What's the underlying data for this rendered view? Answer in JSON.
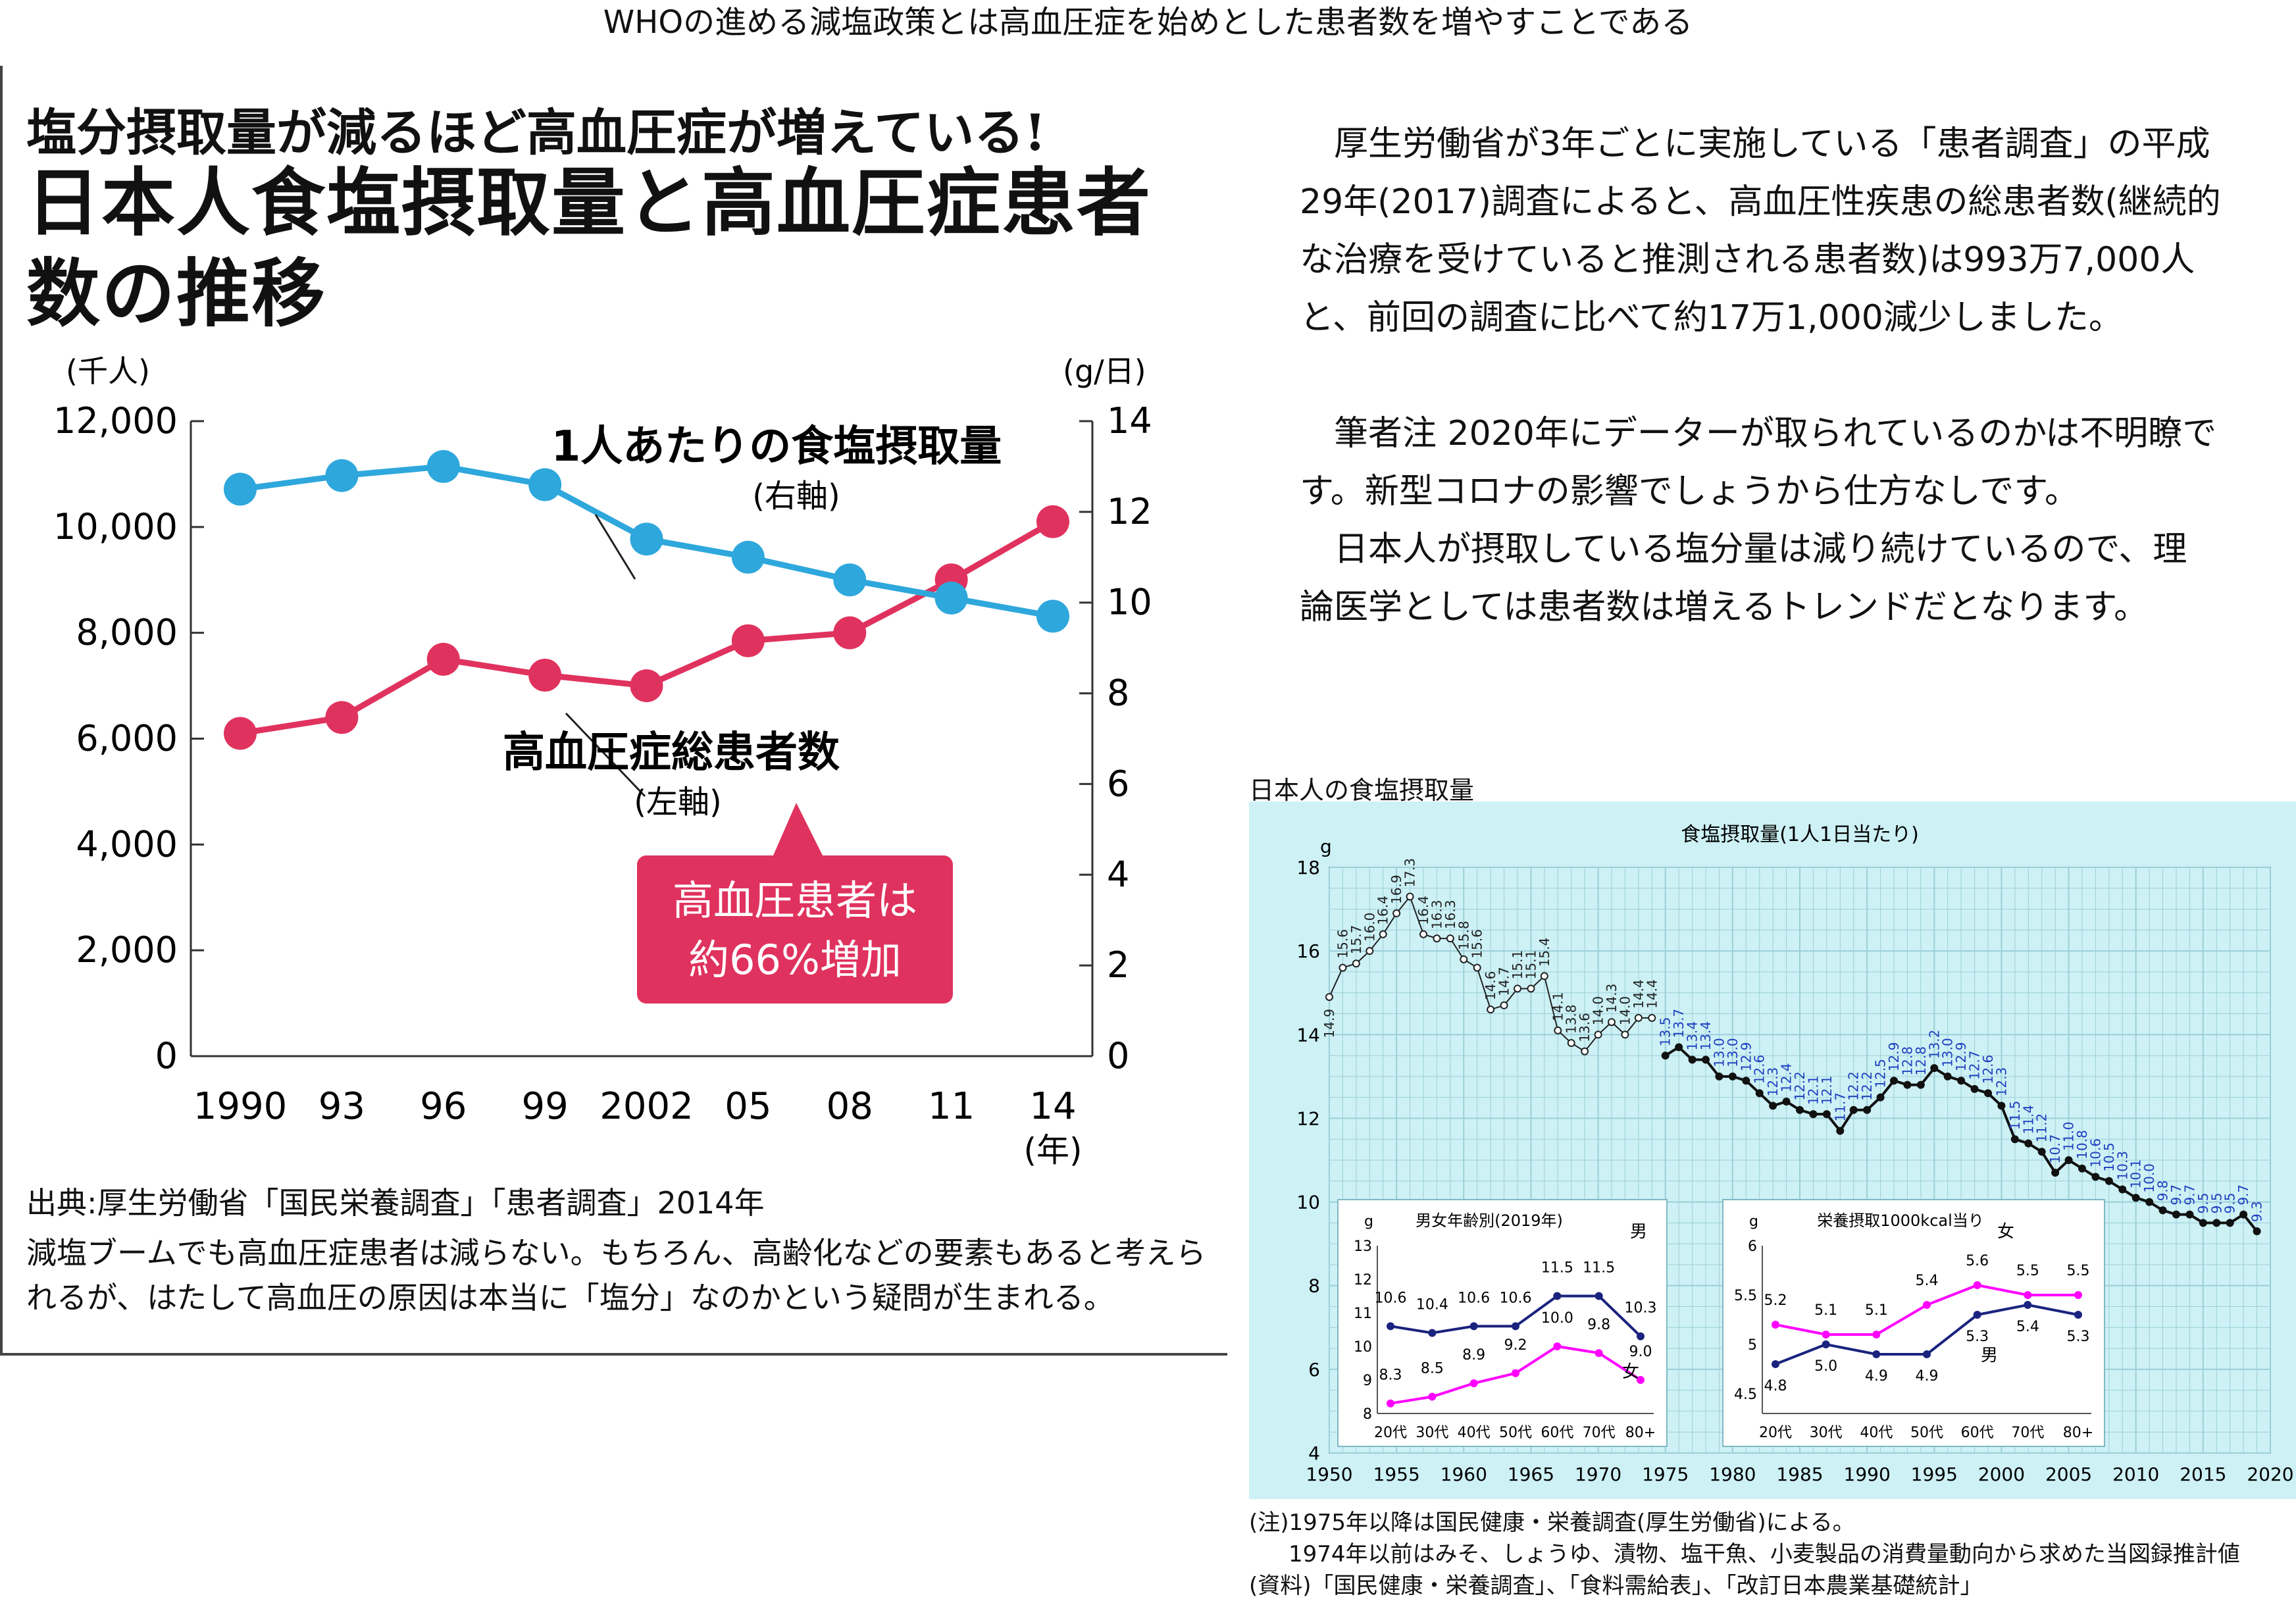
{
  "page": {
    "title": "WHOの進める減塩政策とは高血圧症を始めとした患者数を増やすことである"
  },
  "left": {
    "subtitle": "塩分摂取量が減るほど高血圧症が増えている!",
    "title": "日本人食塩摂取量と高血圧症患者数の推移",
    "source": "出典:厚生労働省「国民栄養調査」「患者調査」2014年",
    "caption": "減塩ブームでも高血圧症患者は減らない。もちろん、高齢化などの要素もあると考えられるが、はたして高血圧の原因は本当に「塩分」なのかという疑問が生まれる。",
    "callout_line1": "高血圧患者は",
    "callout_line2": "約66%増加"
  },
  "right_text": {
    "paragraph1": "厚生労働省が3年ごとに実施している「患者調査」の平成29年(2017)調査によると、高血圧性疾患の総患者数(継続的な治療を受けていると推測される患者数)は993万7,000人と、前回の調査に比べて約17万1,000減少しました。",
    "paragraph2": "筆者注 2020年にデーターが取られているのかは不明瞭です。新型コロナの影響でしょうから仕方なしです。",
    "paragraph3": "日本人が摂取している塩分量は減り続けているので、理論医学としては患者数は増えるトレンドだとなります。"
  },
  "right_chart": {
    "heading": "日本人の食塩摂取量",
    "note1": "(注)1975年以降は国民健康・栄養調査(厚生労働省)による。",
    "note2": "1974年以前はみそ、しょうゆ、漬物、塩干魚、小麦製品の消費量動向から求めた当図録推計値",
    "note3": "(資料)「国民健康・栄養調査」、「食料需給表」、「改訂日本農業基礎統計」"
  },
  "colors": {
    "salt_line": "#2ea7dc",
    "patients_line": "#e0325e",
    "callout_bg": "#e0325e",
    "chart_bg": "#cdf1f5",
    "male_line": "#1a237e",
    "female_line": "#ff00ff",
    "estimate_label": "#222222",
    "survey_label": "#1f3fbf"
  },
  "chart_data": [
    {
      "type": "line",
      "title": "日本人食塩摂取量と高血圧症患者数の推移",
      "subtitle": "塩分摂取量が減るほど高血圧症が増えている!",
      "categories": [
        "1990",
        "93",
        "96",
        "99",
        "2002",
        "05",
        "08",
        "11",
        "14"
      ],
      "xunit": "(年)",
      "left_axis": {
        "unit": "(千人)",
        "ylim": [
          0,
          12000
        ],
        "ticks": [
          "0",
          "2,000",
          "4,000",
          "6,000",
          "8,000",
          "10,000",
          "12,000"
        ]
      },
      "right_axis": {
        "unit": "(g/日)",
        "ylim": [
          0,
          14
        ],
        "ticks": [
          "0",
          "2",
          "4",
          "6",
          "8",
          "10",
          "12",
          "14"
        ]
      },
      "series": [
        {
          "name": "1人あたりの食塩摂取量",
          "axis_note": "(右軸)",
          "axis": "right",
          "values": [
            12.5,
            12.8,
            13.0,
            12.6,
            11.4,
            11.0,
            10.5,
            10.1,
            9.7
          ]
        },
        {
          "name": "高血圧症総患者数",
          "axis_note": "(左軸)",
          "axis": "left",
          "values": [
            6100,
            6400,
            7500,
            7200,
            7000,
            7850,
            8000,
            9000,
            10100
          ]
        }
      ],
      "grid": false
    },
    {
      "type": "line",
      "title": "食塩摂取量(1人1日当たり)",
      "ylabel": "g",
      "xlim": [
        1950,
        2020
      ],
      "ylim": [
        4,
        18
      ],
      "xticks": [
        "1950",
        "1955",
        "1960",
        "1965",
        "1970",
        "1975",
        "1980",
        "1985",
        "1990",
        "1995",
        "2000",
        "2005",
        "2010",
        "2015",
        "2020"
      ],
      "yticks": [
        "4",
        "6",
        "8",
        "10",
        "12",
        "14",
        "16",
        "18"
      ],
      "grid": true,
      "series": [
        {
          "name": "estimate",
          "x": [
            1950,
            1951,
            1952,
            1953,
            1954,
            1955,
            1956,
            1957,
            1958,
            1959,
            1960,
            1961,
            1962,
            1963,
            1964,
            1965,
            1966,
            1967,
            1968,
            1969,
            1970,
            1971,
            1972,
            1973,
            1974
          ],
          "y": [
            14.9,
            15.6,
            15.7,
            16.0,
            16.4,
            16.9,
            17.3,
            16.4,
            16.3,
            16.3,
            15.8,
            15.6,
            14.6,
            14.7,
            15.1,
            15.1,
            15.4,
            14.1,
            13.8,
            13.6,
            14.0,
            14.3,
            14.0,
            14.4,
            14.4
          ],
          "labels": [
            "14.9",
            "15.6",
            "15.7",
            "16.0",
            "16.4",
            "16.9",
            "17.3",
            "16.4",
            "16.3",
            "16.3",
            "15.8",
            "15.6",
            "14.6",
            "14.7",
            "15.1",
            "15.1",
            "15.4",
            "14.1",
            "13.8",
            "13.6",
            "14.0",
            "14.3",
            "14.0",
            "14.4",
            "14.4"
          ]
        },
        {
          "name": "survey",
          "x": [
            1975,
            1976,
            1977,
            1978,
            1979,
            1980,
            1981,
            1982,
            1983,
            1984,
            1985,
            1986,
            1987,
            1988,
            1989,
            1990,
            1991,
            1992,
            1993,
            1994,
            1995,
            1996,
            1997,
            1998,
            1999,
            2000,
            2001,
            2002,
            2003,
            2004,
            2005,
            2006,
            2007,
            2008,
            2009,
            2010,
            2011,
            2012,
            2013,
            2014,
            2015,
            2016,
            2017,
            2018,
            2019
          ],
          "y": [
            13.5,
            13.7,
            13.4,
            13.4,
            13.0,
            13.0,
            12.9,
            12.6,
            12.3,
            12.4,
            12.2,
            12.1,
            12.1,
            11.7,
            12.2,
            12.2,
            12.5,
            12.9,
            12.8,
            12.8,
            13.2,
            13.0,
            12.9,
            12.7,
            12.6,
            12.3,
            11.5,
            11.4,
            11.2,
            10.7,
            11.0,
            10.8,
            10.6,
            10.5,
            10.3,
            10.1,
            10.0,
            9.8,
            9.7,
            9.7,
            9.5,
            9.5,
            9.5,
            9.7,
            9.3
          ],
          "labels": [
            "13.5",
            "13.7",
            "13.4",
            "13.4",
            "13.0",
            "13.0",
            "12.9",
            "12.6",
            "12.3",
            "12.4",
            "12.2",
            "12.1",
            "12.1",
            "11.7",
            "12.2",
            "12.2",
            "12.5",
            "12.9",
            "12.8",
            "12.8",
            "13.2",
            "13.0",
            "12.9",
            "12.7",
            "12.6",
            "12.3",
            "11.5",
            "11.4",
            "11.2",
            "10.7",
            "11.0",
            "10.8",
            "10.6",
            "10.5",
            "10.3",
            "10.1",
            "10.0",
            "9.8",
            "9.7",
            "9.7",
            "9.5",
            "9.5",
            "9.5",
            "9.7",
            "9.3"
          ]
        }
      ]
    },
    {
      "type": "line",
      "title": "男女年齢別(2019年)",
      "ylabel": "g",
      "categories": [
        "20代",
        "30代",
        "40代",
        "50代",
        "60代",
        "70代",
        "80+"
      ],
      "yticks": [
        "8",
        "9",
        "10",
        "11",
        "12",
        "13"
      ],
      "series": [
        {
          "name": "男",
          "values": [
            10.6,
            10.4,
            10.6,
            10.6,
            11.5,
            11.5,
            10.3
          ]
        },
        {
          "name": "女",
          "values": [
            8.3,
            8.5,
            8.9,
            9.2,
            10.0,
            9.8,
            9.0
          ]
        }
      ]
    },
    {
      "type": "line",
      "title": "栄養摂取1000kcal当り",
      "ylabel": "g",
      "categories": [
        "20代",
        "30代",
        "40代",
        "50代",
        "60代",
        "70代",
        "80+"
      ],
      "yticks": [
        "4.5",
        "5",
        "5.5",
        "6"
      ],
      "series": [
        {
          "name": "女",
          "values": [
            5.2,
            5.1,
            5.1,
            5.4,
            5.6,
            5.5,
            5.5
          ]
        },
        {
          "name": "男",
          "values": [
            4.8,
            5.0,
            4.9,
            4.9,
            5.3,
            5.4,
            5.3
          ]
        }
      ]
    }
  ]
}
